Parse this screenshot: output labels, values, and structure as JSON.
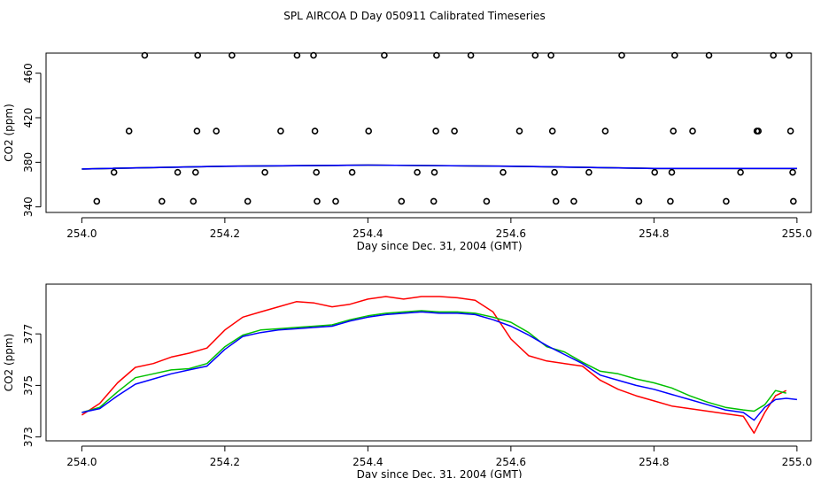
{
  "figure_title": "SPL AIRCOA D  Day 050911  Calibrated Timeseries",
  "colors": {
    "series_red": "#ff0000",
    "series_green": "#00c000",
    "series_blue": "#0000ff",
    "points": "#000000",
    "axis": "#000000"
  },
  "chart_data": [
    {
      "type": "scatter",
      "xlabel": "Day since Dec. 31, 2004 (GMT)",
      "ylabel": "CO2 (ppm)",
      "xlim": [
        253.95,
        255.02
      ],
      "ylim": [
        335,
        478
      ],
      "xticks": [
        254.0,
        254.2,
        254.4,
        254.6,
        254.8,
        255.0
      ],
      "xtick_labels": [
        "254.0",
        "254.2",
        "254.4",
        "254.6",
        "254.8",
        "255.0"
      ],
      "yticks": [
        340,
        380,
        420,
        460
      ],
      "ytick_labels": [
        "340",
        "380",
        "420",
        "460"
      ],
      "points": [
        {
          "x": 254.021,
          "y": 345
        },
        {
          "x": 254.045,
          "y": 371
        },
        {
          "x": 254.066,
          "y": 408
        },
        {
          "x": 254.088,
          "y": 476
        },
        {
          "x": 254.112,
          "y": 345
        },
        {
          "x": 254.134,
          "y": 371
        },
        {
          "x": 254.156,
          "y": 345
        },
        {
          "x": 254.159,
          "y": 371
        },
        {
          "x": 254.161,
          "y": 408
        },
        {
          "x": 254.162,
          "y": 476
        },
        {
          "x": 254.188,
          "y": 408
        },
        {
          "x": 254.21,
          "y": 476
        },
        {
          "x": 254.232,
          "y": 345
        },
        {
          "x": 254.256,
          "y": 371
        },
        {
          "x": 254.278,
          "y": 408
        },
        {
          "x": 254.301,
          "y": 476
        },
        {
          "x": 254.324,
          "y": 476
        },
        {
          "x": 254.326,
          "y": 408
        },
        {
          "x": 254.328,
          "y": 371
        },
        {
          "x": 254.329,
          "y": 345
        },
        {
          "x": 254.355,
          "y": 345
        },
        {
          "x": 254.378,
          "y": 371
        },
        {
          "x": 254.401,
          "y": 408
        },
        {
          "x": 254.423,
          "y": 476
        },
        {
          "x": 254.447,
          "y": 345
        },
        {
          "x": 254.469,
          "y": 371
        },
        {
          "x": 254.492,
          "y": 345
        },
        {
          "x": 254.493,
          "y": 371
        },
        {
          "x": 254.495,
          "y": 408
        },
        {
          "x": 254.496,
          "y": 476
        },
        {
          "x": 254.521,
          "y": 408
        },
        {
          "x": 254.544,
          "y": 476
        },
        {
          "x": 254.566,
          "y": 345
        },
        {
          "x": 254.589,
          "y": 371
        },
        {
          "x": 254.612,
          "y": 408
        },
        {
          "x": 254.634,
          "y": 476
        },
        {
          "x": 254.656,
          "y": 476
        },
        {
          "x": 254.658,
          "y": 408
        },
        {
          "x": 254.661,
          "y": 371
        },
        {
          "x": 254.663,
          "y": 345
        },
        {
          "x": 254.688,
          "y": 345
        },
        {
          "x": 254.709,
          "y": 371
        },
        {
          "x": 254.732,
          "y": 408
        },
        {
          "x": 254.755,
          "y": 476
        },
        {
          "x": 254.779,
          "y": 345
        },
        {
          "x": 254.801,
          "y": 371
        },
        {
          "x": 254.823,
          "y": 345
        },
        {
          "x": 254.825,
          "y": 371
        },
        {
          "x": 254.827,
          "y": 408
        },
        {
          "x": 254.829,
          "y": 476
        },
        {
          "x": 254.854,
          "y": 408
        },
        {
          "x": 254.877,
          "y": 476
        },
        {
          "x": 254.901,
          "y": 345
        },
        {
          "x": 254.921,
          "y": 371
        },
        {
          "x": 254.944,
          "y": 408
        },
        {
          "x": 254.946,
          "y": 408
        },
        {
          "x": 254.967,
          "y": 476
        },
        {
          "x": 254.989,
          "y": 476
        },
        {
          "x": 254.991,
          "y": 408
        },
        {
          "x": 254.994,
          "y": 371
        },
        {
          "x": 254.995,
          "y": 345
        }
      ],
      "series": [
        {
          "name": "red",
          "color": "#ff0000",
          "x": [
            254.0,
            254.2,
            254.4,
            254.6,
            254.8,
            255.0
          ],
          "y": [
            374,
            376.5,
            377.5,
            376.5,
            374.5,
            374.5
          ]
        },
        {
          "name": "green",
          "color": "#00c000",
          "x": [
            254.0,
            254.2,
            254.4,
            254.6,
            254.8,
            255.0
          ],
          "y": [
            374,
            376.5,
            377.5,
            376.5,
            374.5,
            374.5
          ]
        },
        {
          "name": "blue",
          "color": "#0000ff",
          "x": [
            254.0,
            254.2,
            254.4,
            254.6,
            254.8,
            255.0
          ],
          "y": [
            374,
            376.5,
            377.5,
            376.5,
            374.5,
            374.5
          ]
        }
      ]
    },
    {
      "type": "line",
      "xlabel": "Day since Dec. 31, 2004 (GMT)",
      "ylabel": "CO2 (ppm)",
      "xlim": [
        253.95,
        255.02
      ],
      "ylim": [
        372.85,
        378.93
      ],
      "xticks": [
        254.0,
        254.2,
        254.4,
        254.6,
        254.8,
        255.0
      ],
      "xtick_labels": [
        "254.0",
        "254.2",
        "254.4",
        "254.6",
        "254.8",
        "255.0"
      ],
      "yticks": [
        373,
        375,
        377
      ],
      "ytick_labels": [
        "373",
        "375",
        "377"
      ],
      "series": [
        {
          "name": "red",
          "color": "#ff0000",
          "x": [
            254.0,
            254.025,
            254.05,
            254.075,
            254.1,
            254.125,
            254.15,
            254.175,
            254.2,
            254.225,
            254.25,
            254.275,
            254.3,
            254.325,
            254.35,
            254.375,
            254.4,
            254.425,
            254.45,
            254.475,
            254.5,
            254.525,
            254.55,
            254.575,
            254.6,
            254.625,
            254.65,
            254.675,
            254.7,
            254.725,
            254.75,
            254.775,
            254.8,
            254.825,
            254.85,
            254.875,
            254.9,
            254.925,
            254.94,
            254.955,
            254.97,
            254.985
          ],
          "y": [
            373.85,
            374.3,
            375.1,
            375.7,
            375.85,
            376.1,
            376.25,
            376.45,
            377.15,
            377.65,
            377.85,
            378.05,
            378.25,
            378.2,
            378.05,
            378.15,
            378.35,
            378.45,
            378.35,
            378.45,
            378.45,
            378.4,
            378.3,
            377.85,
            376.8,
            376.15,
            375.95,
            375.85,
            375.75,
            375.2,
            374.85,
            374.6,
            374.4,
            374.2,
            374.1,
            374.0,
            373.9,
            373.8,
            373.15,
            373.95,
            374.6,
            374.8
          ]
        },
        {
          "name": "green",
          "color": "#00c000",
          "x": [
            254.0,
            254.025,
            254.05,
            254.075,
            254.1,
            254.125,
            254.15,
            254.175,
            254.2,
            254.225,
            254.25,
            254.275,
            254.3,
            254.325,
            254.35,
            254.375,
            254.4,
            254.425,
            254.45,
            254.475,
            254.5,
            254.525,
            254.55,
            254.575,
            254.6,
            254.625,
            254.65,
            254.675,
            254.7,
            254.725,
            254.75,
            254.775,
            254.8,
            254.825,
            254.85,
            254.875,
            254.9,
            254.925,
            254.94,
            254.955,
            254.97,
            254.985
          ],
          "y": [
            373.95,
            374.15,
            374.75,
            375.3,
            375.45,
            375.6,
            375.65,
            375.85,
            376.5,
            376.95,
            377.15,
            377.2,
            377.25,
            377.3,
            377.35,
            377.55,
            377.7,
            377.8,
            377.85,
            377.9,
            377.85,
            377.85,
            377.8,
            377.65,
            377.45,
            377.05,
            376.5,
            376.3,
            375.9,
            375.55,
            375.45,
            375.25,
            375.1,
            374.9,
            374.6,
            374.35,
            374.15,
            374.05,
            374.0,
            374.25,
            374.8,
            374.7
          ]
        },
        {
          "name": "blue",
          "color": "#0000ff",
          "x": [
            254.0,
            254.025,
            254.05,
            254.075,
            254.1,
            254.125,
            254.15,
            254.175,
            254.2,
            254.225,
            254.25,
            254.275,
            254.3,
            254.325,
            254.35,
            254.375,
            254.4,
            254.425,
            254.45,
            254.475,
            254.5,
            254.525,
            254.55,
            254.575,
            254.6,
            254.625,
            254.65,
            254.675,
            254.7,
            254.725,
            254.75,
            254.775,
            254.8,
            254.825,
            254.85,
            254.875,
            254.9,
            254.925,
            254.94,
            254.955,
            254.97,
            254.985,
            255.0
          ],
          "y": [
            373.95,
            374.1,
            374.6,
            375.05,
            375.25,
            375.45,
            375.6,
            375.75,
            376.4,
            376.9,
            377.05,
            377.15,
            377.2,
            377.25,
            377.3,
            377.5,
            377.65,
            377.75,
            377.8,
            377.85,
            377.8,
            377.8,
            377.75,
            377.55,
            377.3,
            376.95,
            376.55,
            376.2,
            375.85,
            375.4,
            375.2,
            375.0,
            374.85,
            374.65,
            374.45,
            374.25,
            374.05,
            373.95,
            373.65,
            374.15,
            374.45,
            374.5,
            374.45
          ]
        }
      ]
    }
  ]
}
